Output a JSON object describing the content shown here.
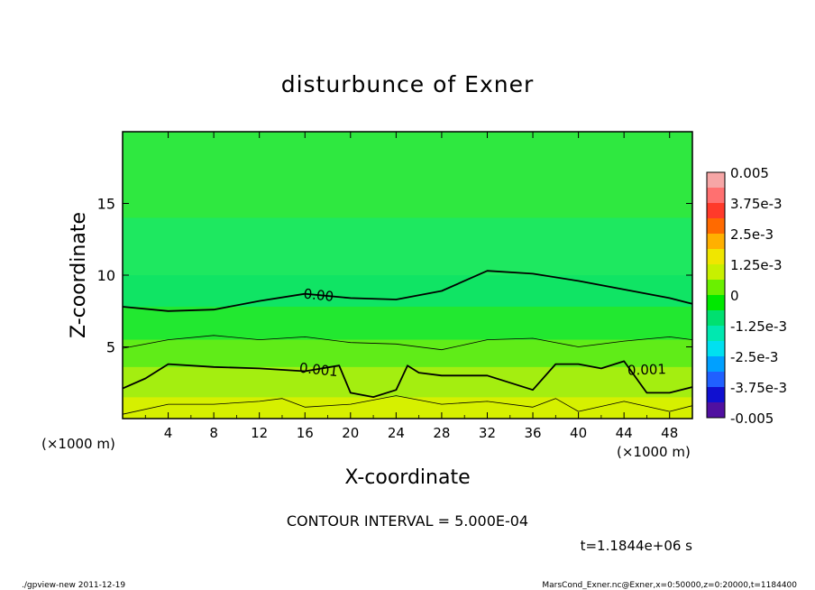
{
  "chart_data": {
    "type": "heatmap",
    "title": "disturbunce of Exner",
    "xlabel": "X-coordinate",
    "ylabel": "Z-coordinate",
    "x_unit_left": "(×1000 m)",
    "x_unit_right": "(×1000 m)",
    "xlim": [
      0,
      50
    ],
    "ylim": [
      0,
      20
    ],
    "x_ticks": [
      4,
      8,
      12,
      16,
      20,
      24,
      28,
      32,
      36,
      40,
      44,
      48
    ],
    "y_ticks": [
      5,
      10,
      15
    ],
    "contour_interval_text": "CONTOUR INTERVAL = 5.000E-04",
    "time_text": "t=1.1844e+06 s",
    "contour_labels": [
      "0.00",
      "0.001",
      "0.001"
    ],
    "colorbar": {
      "labels": [
        "0.005",
        "3.75e-3",
        "2.5e-3",
        "1.25e-3",
        "0",
        "-1.25e-3",
        "-2.5e-3",
        "-3.75e-3",
        "-0.005"
      ],
      "range": [
        -0.005,
        0.005
      ],
      "colors": [
        "#f6a6a6",
        "#ff7070",
        "#ff3a2a",
        "#ff6a00",
        "#ffb000",
        "#f0e600",
        "#c8f000",
        "#6af000",
        "#00e800",
        "#00e070",
        "#00e8b0",
        "#00e0f0",
        "#00a0ff",
        "#2060ff",
        "#1010d0",
        "#5010a0"
      ]
    },
    "contours": [
      {
        "level": 0.0,
        "label": "0.00",
        "x": [
          0,
          4,
          8,
          12,
          16,
          20,
          24,
          28,
          32,
          36,
          40,
          44,
          48,
          50
        ],
        "z": [
          7.8,
          7.5,
          7.6,
          8.2,
          8.7,
          8.4,
          8.3,
          8.9,
          10.3,
          10.1,
          9.6,
          9.0,
          8.4,
          8.0
        ]
      },
      {
        "level": 0.0005,
        "label": "",
        "x": [
          0,
          4,
          8,
          12,
          16,
          20,
          24,
          28,
          32,
          36,
          40,
          44,
          48,
          50
        ],
        "z": [
          4.9,
          5.5,
          5.8,
          5.5,
          5.7,
          5.3,
          5.2,
          4.8,
          5.5,
          5.6,
          5.0,
          5.4,
          5.7,
          5.5
        ]
      },
      {
        "level": 0.001,
        "label": "0.001",
        "x": [
          0,
          2,
          4,
          8,
          12,
          16,
          19,
          20,
          22,
          24,
          25,
          26,
          28,
          32,
          36,
          38,
          40,
          42,
          44,
          46,
          48,
          50
        ],
        "z": [
          2.1,
          2.8,
          3.8,
          3.6,
          3.5,
          3.3,
          3.7,
          1.8,
          1.5,
          2.0,
          3.7,
          3.2,
          3.0,
          3.0,
          2.0,
          3.8,
          3.8,
          3.5,
          4.0,
          1.8,
          1.8,
          2.2
        ]
      },
      {
        "level": 0.0015,
        "label": "",
        "x": [
          0,
          4,
          8,
          12,
          14,
          16,
          20,
          24,
          28,
          32,
          36,
          38,
          40,
          44,
          48,
          50
        ],
        "z": [
          0.3,
          1.0,
          1.0,
          1.2,
          1.4,
          0.8,
          1.0,
          1.6,
          1.0,
          1.2,
          0.8,
          1.4,
          0.5,
          1.2,
          0.5,
          0.9
        ]
      }
    ],
    "fill_bands": [
      {
        "z0": 14,
        "z1": 20,
        "color": "#2fe840"
      },
      {
        "z0": 10,
        "z1": 14,
        "color": "#1ee860"
      },
      {
        "z0": 7.8,
        "z1": 10,
        "color": "#10e464"
      },
      {
        "z0": 5.5,
        "z1": 7.8,
        "color": "#22e830"
      },
      {
        "z0": 3.6,
        "z1": 5.5,
        "color": "#60ec18"
      },
      {
        "z0": 1.5,
        "z1": 3.6,
        "color": "#a4ee10"
      },
      {
        "z0": 0,
        "z1": 1.5,
        "color": "#d6f000"
      }
    ]
  },
  "footer": {
    "left": "./gpview-new   2011-12-19",
    "right": "MarsCond_Exner.nc@Exner,x=0:50000,z=0:20000,t=1184400"
  }
}
